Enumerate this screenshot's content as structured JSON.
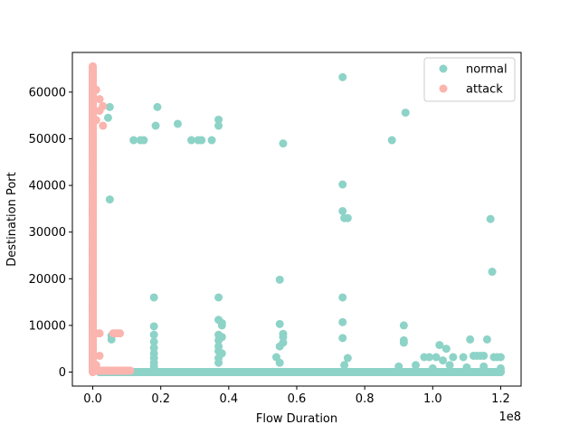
{
  "chart_data": {
    "type": "scatter",
    "xlabel": "Flow Duration",
    "ylabel": "Destination Port",
    "x_scale_label": "1e8",
    "xlim": [
      -0.06,
      1.26
    ],
    "ylim": [
      -3000,
      68500
    ],
    "x_unit_multiplier": 100000000,
    "x_ticks": [
      0.0,
      0.2,
      0.4,
      0.6,
      0.8,
      1.0,
      1.2
    ],
    "x_tick_labels": [
      "0.0",
      "0.2",
      "0.4",
      "0.6",
      "0.8",
      "1.0",
      "1.2"
    ],
    "y_ticks": [
      0,
      10000,
      20000,
      30000,
      40000,
      50000,
      60000
    ],
    "y_tick_labels": [
      "0",
      "10000",
      "20000",
      "30000",
      "40000",
      "50000",
      "60000"
    ],
    "legend_position": "top-right",
    "grid": false,
    "series": [
      {
        "name": "normal",
        "color": "#8dd3c7",
        "points": [
          [
            0.18,
            16000
          ],
          [
            0.18,
            9800
          ],
          [
            0.18,
            8000
          ],
          [
            0.18,
            6500
          ],
          [
            0.18,
            5200
          ],
          [
            0.18,
            4000
          ],
          [
            0.18,
            3000
          ],
          [
            0.18,
            2000
          ],
          [
            0.18,
            1200
          ],
          [
            0.19,
            56800
          ],
          [
            0.185,
            52800
          ],
          [
            0.25,
            53200
          ],
          [
            0.12,
            49700
          ],
          [
            0.14,
            49700
          ],
          [
            0.15,
            49700
          ],
          [
            0.29,
            49700
          ],
          [
            0.31,
            49700
          ],
          [
            0.32,
            49700
          ],
          [
            0.35,
            49700
          ],
          [
            0.05,
            56800
          ],
          [
            0.045,
            54500
          ],
          [
            0.05,
            37000
          ],
          [
            0.055,
            7800
          ],
          [
            0.055,
            7000
          ],
          [
            0.37,
            54100
          ],
          [
            0.37,
            52800
          ],
          [
            0.37,
            16000
          ],
          [
            0.37,
            11200
          ],
          [
            0.38,
            10500
          ],
          [
            0.38,
            10000
          ],
          [
            0.37,
            8000
          ],
          [
            0.38,
            7500
          ],
          [
            0.37,
            6800
          ],
          [
            0.37,
            5500
          ],
          [
            0.37,
            4500
          ],
          [
            0.38,
            4000
          ],
          [
            0.37,
            3000
          ],
          [
            0.37,
            2000
          ],
          [
            0.56,
            49000
          ],
          [
            0.55,
            19800
          ],
          [
            0.55,
            10300
          ],
          [
            0.56,
            8200
          ],
          [
            0.56,
            7500
          ],
          [
            0.56,
            6300
          ],
          [
            0.55,
            5500
          ],
          [
            0.54,
            3200
          ],
          [
            0.55,
            2000
          ],
          [
            0.735,
            63200
          ],
          [
            0.735,
            40200
          ],
          [
            0.735,
            34500
          ],
          [
            0.74,
            33000
          ],
          [
            0.75,
            33000
          ],
          [
            0.735,
            16000
          ],
          [
            0.735,
            10700
          ],
          [
            0.735,
            7300
          ],
          [
            0.75,
            3000
          ],
          [
            0.74,
            1500
          ],
          [
            0.88,
            49700
          ],
          [
            0.92,
            55600
          ],
          [
            0.915,
            10000
          ],
          [
            0.915,
            6800
          ],
          [
            0.915,
            6300
          ],
          [
            0.975,
            3200
          ],
          [
            0.99,
            3200
          ],
          [
            1.01,
            3200
          ],
          [
            1.02,
            5800
          ],
          [
            1.04,
            5000
          ],
          [
            1.03,
            2500
          ],
          [
            1.06,
            3200
          ],
          [
            1.09,
            3200
          ],
          [
            1.11,
            7000
          ],
          [
            1.12,
            3500
          ],
          [
            1.13,
            3500
          ],
          [
            1.14,
            3500
          ],
          [
            1.15,
            3500
          ],
          [
            1.16,
            7000
          ],
          [
            1.17,
            32800
          ],
          [
            1.175,
            21500
          ],
          [
            1.18,
            3200
          ],
          [
            1.19,
            3200
          ],
          [
            1.2,
            3200
          ],
          [
            0.9,
            1200
          ],
          [
            0.95,
            1500
          ],
          [
            1.0,
            800
          ],
          [
            1.05,
            1500
          ],
          [
            1.1,
            1000
          ],
          [
            1.15,
            1200
          ],
          [
            1.2,
            800
          ],
          [
            1.2,
            200
          ],
          [
            0.02,
            0
          ],
          [
            0.05,
            0
          ],
          [
            0.1,
            0
          ],
          [
            0.15,
            0
          ],
          [
            0.2,
            0
          ],
          [
            0.25,
            0
          ],
          [
            0.3,
            0
          ],
          [
            0.35,
            0
          ],
          [
            0.4,
            0
          ],
          [
            0.45,
            0
          ],
          [
            0.5,
            0
          ],
          [
            0.55,
            0
          ],
          [
            0.6,
            0
          ],
          [
            0.65,
            0
          ],
          [
            0.7,
            0
          ],
          [
            0.75,
            0
          ],
          [
            0.8,
            0
          ],
          [
            0.85,
            0
          ],
          [
            0.9,
            0
          ],
          [
            0.95,
            0
          ],
          [
            1.0,
            0
          ],
          [
            1.05,
            0
          ],
          [
            1.1,
            0
          ],
          [
            1.15,
            0
          ],
          [
            1.2,
            0
          ]
        ]
      },
      {
        "name": "attack",
        "color": "#fbb4ae",
        "points": [
          [
            0.0,
            65500
          ],
          [
            0.0,
            63000
          ],
          [
            0.0,
            60000
          ],
          [
            0.01,
            60500
          ],
          [
            0.0,
            57000
          ],
          [
            0.02,
            58500
          ],
          [
            0.0,
            55000
          ],
          [
            0.01,
            54000
          ],
          [
            0.02,
            56000
          ],
          [
            0.03,
            57000
          ],
          [
            0.03,
            52800
          ],
          [
            0.0,
            50000
          ],
          [
            0.0,
            47000
          ],
          [
            0.0,
            44000
          ],
          [
            0.0,
            41000
          ],
          [
            0.0,
            38000
          ],
          [
            0.0,
            35000
          ],
          [
            0.0,
            32000
          ],
          [
            0.0,
            29000
          ],
          [
            0.0,
            26000
          ],
          [
            0.0,
            23000
          ],
          [
            0.0,
            20000
          ],
          [
            0.0,
            17000
          ],
          [
            0.0,
            14000
          ],
          [
            0.0,
            11000
          ],
          [
            0.0,
            8500
          ],
          [
            0.0,
            6000
          ],
          [
            0.0,
            3500
          ],
          [
            0.0,
            1000
          ],
          [
            0.0,
            0
          ],
          [
            0.01,
            8300
          ],
          [
            0.02,
            8300
          ],
          [
            0.06,
            8300
          ],
          [
            0.07,
            8300
          ],
          [
            0.08,
            8300
          ],
          [
            0.02,
            3500
          ],
          [
            0.01,
            1500
          ],
          [
            0.01,
            300
          ],
          [
            0.02,
            300
          ],
          [
            0.03,
            300
          ],
          [
            0.04,
            300
          ],
          [
            0.05,
            300
          ],
          [
            0.06,
            300
          ],
          [
            0.07,
            300
          ],
          [
            0.08,
            300
          ],
          [
            0.09,
            300
          ],
          [
            0.1,
            300
          ],
          [
            0.11,
            300
          ]
        ]
      }
    ]
  }
}
